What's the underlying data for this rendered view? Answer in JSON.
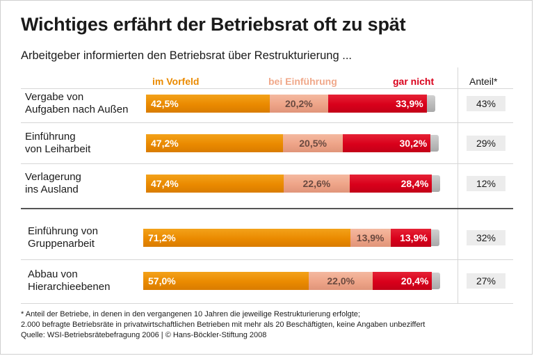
{
  "title": "Wichtiges erfährt der Betriebsrat oft zu spät",
  "subtitle": "Arbeitgeber informierten den Betriebsrat über Restrukturierung ...",
  "share_header": "Anteil*",
  "footnote": [
    "* Anteil der Betriebe, in denen in den vergangenen 10 Jahren die jeweilige Restrukturierung erfolgte;",
    "2.000 befragte Betriebsräte in privatwirtschaftlichen Betrieben mit mehr als 20 Beschäftigten, keine Angaben unbeziffert",
    "Quelle: WSI-Betriebsrätebefragung 2006 | © Hans-Böckler-Stiftung 2008"
  ],
  "chart_data": {
    "type": "bar",
    "orientation": "horizontal",
    "stacked": true,
    "unit": "%",
    "legend_placement": "top",
    "colors": [
      "#ea8a00",
      "#eea488",
      "#d9001b"
    ],
    "series": [
      {
        "name": "im Vorfeld",
        "values": [
          42.5,
          47.2,
          47.4,
          71.2,
          57.0
        ],
        "labels": [
          "42,5%",
          "47,2%",
          "47,4%",
          "71,2%",
          "57,0%"
        ]
      },
      {
        "name": "bei Einführung",
        "values": [
          20.2,
          20.5,
          22.6,
          13.9,
          22.0
        ],
        "labels": [
          "20,2%",
          "20,5%",
          "22,6%",
          "13,9%",
          "22,0%"
        ]
      },
      {
        "name": "gar nicht",
        "values": [
          33.9,
          30.2,
          28.4,
          13.9,
          20.4
        ],
        "labels": [
          "33,9%",
          "30,2%",
          "28,4%",
          "13,9%",
          "20,4%"
        ]
      }
    ],
    "categories": [
      [
        "Vergabe von",
        "Aufgaben nach Außen"
      ],
      [
        "Einführung",
        "von Leiharbeit"
      ],
      [
        "Verlagerung",
        "ins Ausland"
      ],
      [
        "Einführung von",
        "Gruppenarbeit"
      ],
      [
        "Abbau von",
        "Hierarchieebenen"
      ]
    ],
    "shares": [
      {
        "value": 43,
        "label": "43%"
      },
      {
        "value": 29,
        "label": "29%"
      },
      {
        "value": 12,
        "label": "12%"
      },
      {
        "value": 32,
        "label": "32%"
      },
      {
        "value": 27,
        "label": "27%"
      }
    ]
  }
}
